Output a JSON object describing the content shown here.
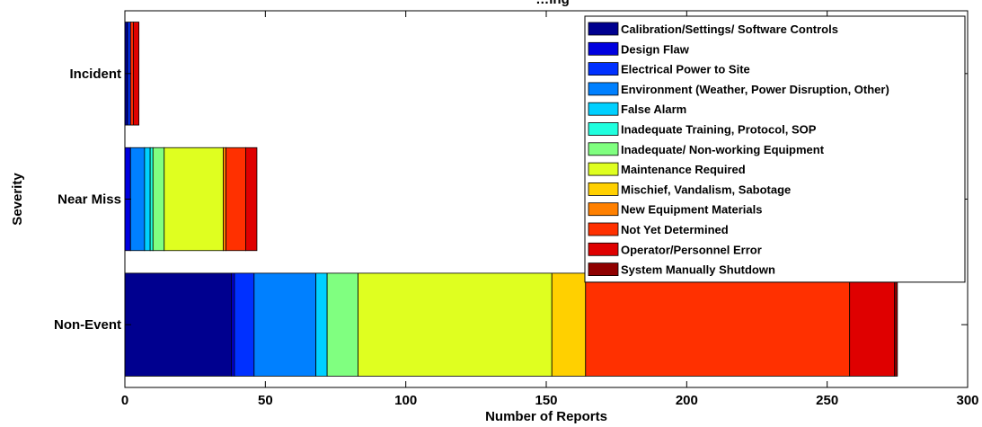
{
  "chart_data": {
    "type": "bar",
    "orientation": "horizontal",
    "stacked": true,
    "title": "…ing",
    "xlabel": "Number of Reports",
    "ylabel": "Severity",
    "xlim": [
      0,
      300
    ],
    "xticks": [
      0,
      50,
      100,
      150,
      200,
      250,
      300
    ],
    "categories": [
      "Incident",
      "Near Miss",
      "Non-Event"
    ],
    "legend_position": "top-right",
    "grid": false,
    "series": [
      {
        "name": "Calibration/Settings/ Software Controls",
        "color": "#00008F",
        "values": [
          1,
          0,
          38
        ]
      },
      {
        "name": "Design Flaw",
        "color": "#0000DF",
        "values": [
          0,
          2,
          1
        ]
      },
      {
        "name": "Electrical Power to Site",
        "color": "#0030FF",
        "values": [
          1,
          0,
          7
        ]
      },
      {
        "name": "Environment (Weather, Power Disruption, Other)",
        "color": "#0080FF",
        "values": [
          0,
          5,
          22
        ]
      },
      {
        "name": "False Alarm",
        "color": "#00D0FF",
        "values": [
          0,
          2,
          4
        ]
      },
      {
        "name": "Inadequate Training, Protocol, SOP",
        "color": "#20FFDF",
        "values": [
          0,
          1,
          0
        ]
      },
      {
        "name": "Inadequate/ Non-working Equipment",
        "color": "#80FF80",
        "values": [
          0,
          4,
          11
        ]
      },
      {
        "name": "Maintenance Required",
        "color": "#DFFF20",
        "values": [
          0,
          21,
          69
        ]
      },
      {
        "name": "Mischief, Vandalism, Sabotage",
        "color": "#FFD000",
        "values": [
          0,
          0,
          12
        ]
      },
      {
        "name": "New Equipment Materials",
        "color": "#FF8000",
        "values": [
          0,
          1,
          0
        ]
      },
      {
        "name": "Not Yet Determined",
        "color": "#FF3000",
        "values": [
          1,
          7,
          94
        ]
      },
      {
        "name": "Operator/Personnel Error",
        "color": "#DF0000",
        "values": [
          2,
          4,
          16
        ]
      },
      {
        "name": "System Manually Shutdown",
        "color": "#8F0000",
        "values": [
          0,
          0,
          1
        ]
      }
    ]
  }
}
